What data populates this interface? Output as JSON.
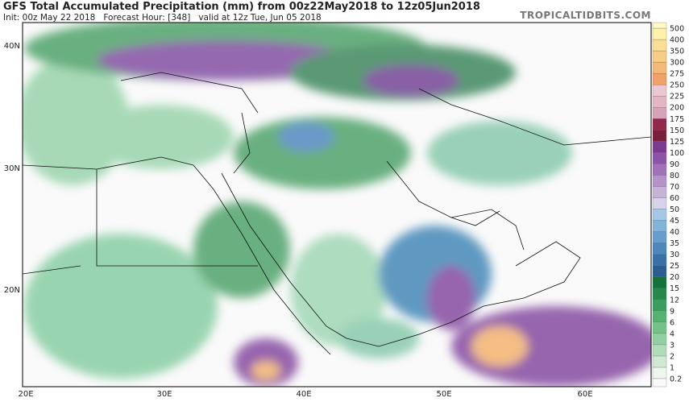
{
  "header": {
    "title": "GFS Total Accumulated Precipitation (mm) from 00z22May2018 to 12z05Jun2018",
    "subtitle": "Init: 00z May 22 2018   Forecast Hour: [348]   valid at 12z Tue, Jun 05 2018",
    "source": "TROPICALTIDBITS.COM"
  },
  "map": {
    "lat_labels": [
      "40N",
      "30N",
      "20N"
    ],
    "lon_labels": [
      "20E",
      "30E",
      "40E",
      "50E",
      "60E"
    ]
  },
  "colorbar": {
    "levels": [
      0.2,
      1,
      2,
      3,
      4,
      6,
      9,
      12,
      15,
      20,
      25,
      30,
      35,
      40,
      45,
      50,
      60,
      70,
      80,
      90,
      100,
      125,
      150,
      175,
      200,
      225,
      250,
      275,
      300,
      350,
      400,
      500
    ],
    "colors": [
      "#eef7ee",
      "#cfe9d3",
      "#b1dcba",
      "#92cfa2",
      "#74c28a",
      "#56b272",
      "#3c9d5e",
      "#27874c",
      "#17713d",
      "#2c5d8f",
      "#3a70a6",
      "#4f86bb",
      "#689dcc",
      "#84b3da",
      "#a4c8e6",
      "#d8d3e8",
      "#c6b3d8",
      "#b393c8",
      "#a073b7",
      "#8c54a6",
      "#7a3a8f",
      "#7a1f3c",
      "#92284a",
      "#d8a3b8",
      "#e3b6c4",
      "#ecc8d2",
      "#f1a26a",
      "#f4b878",
      "#f7cd86",
      "#fae097",
      "#fdf1ab"
    ]
  }
}
